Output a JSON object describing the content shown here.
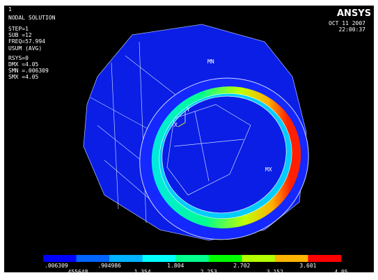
{
  "window": {
    "number": "1",
    "logo": "ANSYS",
    "date": "OCT 11 2007",
    "time": "22:00:37"
  },
  "info": [
    "NODAL SOLUTION",
    "STEP=1",
    "SUB =12",
    "FREQ=57.994",
    "USUM      (AVG)",
    "RSYS=0",
    "DMX =4.05",
    "SMN =.006309",
    "SMX =4.05"
  ],
  "model": {
    "min_label": "MN",
    "max_label": "MX",
    "axis_y": "Y",
    "axis_x": "X"
  },
  "legend": {
    "labels": [
      ".006309",
      ".455648",
      ".904986",
      "1.354",
      "1.804",
      "2.253",
      "2.702",
      "3.152",
      "3.601",
      "4.05"
    ],
    "colors": [
      "#0000ff",
      "#0064ff",
      "#00b4ff",
      "#00ffff",
      "#00ff8c",
      "#00ff00",
      "#b4ff00",
      "#ffb400",
      "#ff0000"
    ]
  }
}
